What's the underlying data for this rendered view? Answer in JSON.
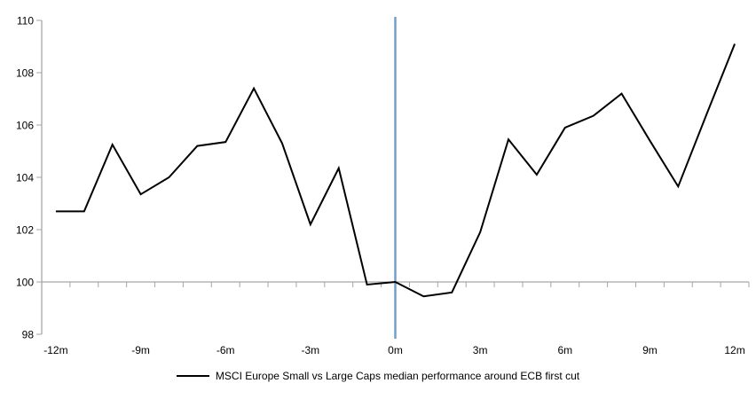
{
  "chart_data": {
    "type": "line",
    "title": "",
    "legend_position": "bottom",
    "grid": false,
    "baseline": 100,
    "axis_color": "#A6A6A6",
    "x_axis": {
      "tick_labels": [
        "-12m",
        "-9m",
        "-6m",
        "-3m",
        "0m",
        "3m",
        "6m",
        "9m",
        "12m"
      ],
      "tick_months": [
        -12,
        -9,
        -6,
        -3,
        0,
        3,
        6,
        9,
        12
      ]
    },
    "y_axis": {
      "ticks": [
        98,
        100,
        102,
        104,
        106,
        108,
        110
      ],
      "ylim": [
        98,
        110
      ]
    },
    "x": [
      -12,
      -11,
      -10,
      -9,
      -8,
      -7,
      -6,
      -5,
      -4,
      -3,
      -2,
      -1,
      0,
      1,
      2,
      3,
      4,
      5,
      6,
      7,
      8,
      9,
      10,
      11,
      12
    ],
    "series": [
      {
        "name": "MSCI Europe Small vs Large Caps median performance around ECB first cut",
        "color": "#000000",
        "values": [
          102.7,
          102.7,
          105.25,
          103.35,
          104.0,
          105.2,
          105.35,
          107.4,
          105.3,
          102.2,
          104.35,
          99.9,
          100.0,
          99.45,
          99.6,
          101.9,
          105.45,
          104.1,
          105.9,
          106.35,
          107.2,
          105.4,
          103.65,
          106.4,
          109.1
        ]
      }
    ],
    "event_line": {
      "x": 0,
      "color": "#74A0C8"
    }
  }
}
